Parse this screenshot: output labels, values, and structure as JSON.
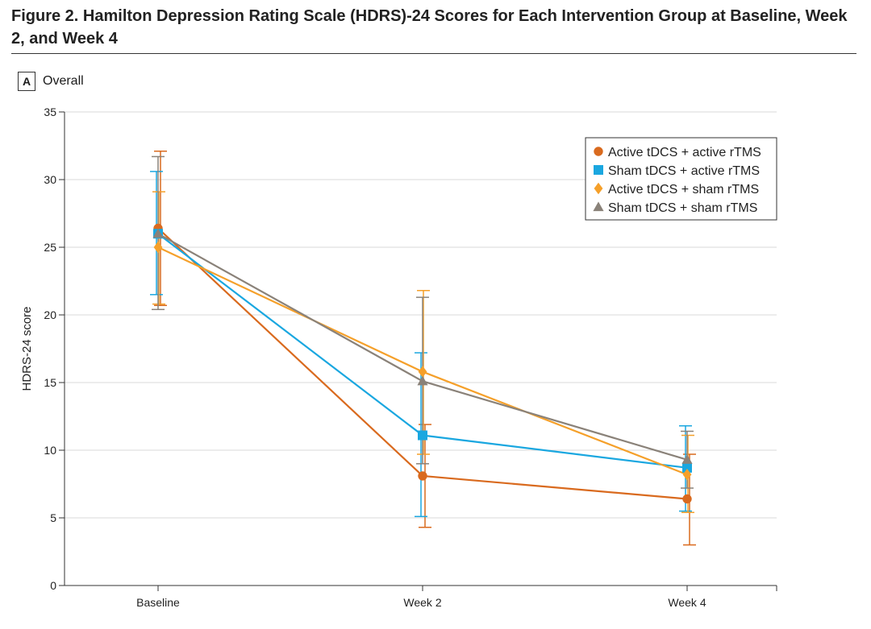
{
  "figure": {
    "title": "Figure 2. Hamilton Depression Rating Scale (HDRS)-24 Scores for Each Intervention Group at Baseline, Week 2, and Week 4",
    "panel_letter": "A",
    "panel_name": "Overall"
  },
  "chart_data": {
    "type": "line",
    "title": "Overall",
    "xlabel": "",
    "ylabel": "HDRS-24 score",
    "categories": [
      "Baseline",
      "Week 2",
      "Week 4"
    ],
    "ylim": [
      0,
      35
    ],
    "yticks": [
      0,
      5,
      10,
      15,
      20,
      25,
      30,
      35
    ],
    "grid": true,
    "legend_position": "top-right",
    "series": [
      {
        "name": "Active tDCS + active rTMS",
        "marker": "circle",
        "color": "#d96a1e",
        "values": [
          26.4,
          8.1,
          6.4
        ],
        "err_low": [
          20.7,
          4.3,
          3.0
        ],
        "err_high": [
          32.1,
          11.9,
          9.7
        ]
      },
      {
        "name": "Sham tDCS + active rTMS",
        "marker": "square",
        "color": "#1aa7e0",
        "values": [
          26.0,
          11.1,
          8.7
        ],
        "err_low": [
          21.5,
          5.1,
          5.5
        ],
        "err_high": [
          30.6,
          17.2,
          11.8
        ]
      },
      {
        "name": "Active tDCS + sham rTMS",
        "marker": "diamond",
        "color": "#f5a02a",
        "values": [
          25.0,
          15.8,
          8.2
        ],
        "err_low": [
          20.8,
          9.7,
          5.4
        ],
        "err_high": [
          29.1,
          21.8,
          11.1
        ]
      },
      {
        "name": "Sham tDCS + sham rTMS",
        "marker": "triangle",
        "color": "#8a8279",
        "values": [
          26.0,
          15.1,
          9.3
        ],
        "err_low": [
          20.4,
          9.0,
          7.2
        ],
        "err_high": [
          31.7,
          21.3,
          11.4
        ]
      }
    ]
  }
}
